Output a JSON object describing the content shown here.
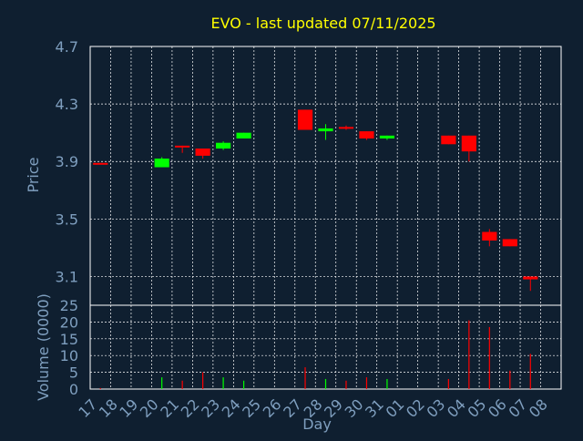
{
  "colors": {
    "background": "#0f1f30",
    "plot_frame": "#ffffff",
    "grid": "#ffffff",
    "title": "#ffff00",
    "axis_text": "#7f9fbf",
    "up": "#00ff00",
    "down": "#ff0000"
  },
  "chart_data": [
    {
      "type": "candlestick",
      "title": "EVO - last updated 07/11/2025",
      "ylabel": "Price",
      "ylim": [
        2.9,
        4.7
      ],
      "yticks": [
        "3.1",
        "3.5",
        "3.9",
        "4.3",
        "4.7"
      ],
      "grid": true,
      "x_days": [
        "17",
        "18",
        "19",
        "20",
        "21",
        "22",
        "23",
        "24",
        "25",
        "26",
        "27",
        "28",
        "29",
        "30",
        "31",
        "01",
        "02",
        "03",
        "04",
        "05",
        "06",
        "07",
        "08"
      ],
      "candles": [
        {
          "day": "17",
          "open": 3.89,
          "close": 3.88,
          "high": 3.89,
          "low": 3.88
        },
        {
          "day": "20",
          "open": 3.86,
          "close": 3.92,
          "high": 3.93,
          "low": 3.86
        },
        {
          "day": "21",
          "open": 4.01,
          "close": 4.0,
          "high": 4.01,
          "low": 3.96
        },
        {
          "day": "22",
          "open": 3.99,
          "close": 3.94,
          "high": 3.99,
          "low": 3.92
        },
        {
          "day": "23",
          "open": 3.99,
          "close": 4.03,
          "high": 4.04,
          "low": 3.98
        },
        {
          "day": "24",
          "open": 4.06,
          "close": 4.1,
          "high": 4.1,
          "low": 4.06
        },
        {
          "day": "27",
          "open": 4.26,
          "close": 4.12,
          "high": 4.26,
          "low": 4.12
        },
        {
          "day": "28",
          "open": 4.11,
          "close": 4.13,
          "high": 4.16,
          "low": 4.05
        },
        {
          "day": "29",
          "open": 4.14,
          "close": 4.13,
          "high": 4.15,
          "low": 4.12
        },
        {
          "day": "30",
          "open": 4.11,
          "close": 4.06,
          "high": 4.11,
          "low": 4.05
        },
        {
          "day": "31",
          "open": 4.06,
          "close": 4.08,
          "high": 4.08,
          "low": 4.05
        },
        {
          "day": "03",
          "open": 4.08,
          "close": 4.02,
          "high": 4.08,
          "low": 4.02
        },
        {
          "day": "04",
          "open": 4.08,
          "close": 3.97,
          "high": 4.08,
          "low": 3.9
        },
        {
          "day": "05",
          "open": 3.41,
          "close": 3.35,
          "high": 3.43,
          "low": 3.31
        },
        {
          "day": "06",
          "open": 3.36,
          "close": 3.31,
          "high": 3.36,
          "low": 3.31
        },
        {
          "day": "07",
          "open": 3.1,
          "close": 3.08,
          "high": 3.1,
          "low": 3.0
        }
      ]
    },
    {
      "type": "bar",
      "ylabel": "Volume (0000)",
      "xlabel": "Day",
      "ylim": [
        0,
        25
      ],
      "yticks": [
        "0",
        "5",
        "10",
        "15",
        "20",
        "25"
      ],
      "grid": true,
      "categories": [
        "17",
        "18",
        "19",
        "20",
        "21",
        "22",
        "23",
        "24",
        "25",
        "26",
        "27",
        "28",
        "29",
        "30",
        "31",
        "01",
        "02",
        "03",
        "04",
        "05",
        "06",
        "07",
        "08"
      ],
      "values": [
        0.3,
        0,
        0,
        3.5,
        2.5,
        5,
        3.5,
        2.5,
        0,
        0,
        6.5,
        3,
        2.5,
        3.5,
        3,
        0,
        0,
        3,
        20.5,
        18.5,
        5.5,
        10.5,
        0
      ],
      "directions": [
        "down",
        "",
        "",
        "up",
        "down",
        "down",
        "up",
        "up",
        "",
        "",
        "down",
        "up",
        "down",
        "down",
        "up",
        "",
        "",
        "down",
        "down",
        "down",
        "down",
        "down",
        ""
      ]
    }
  ]
}
